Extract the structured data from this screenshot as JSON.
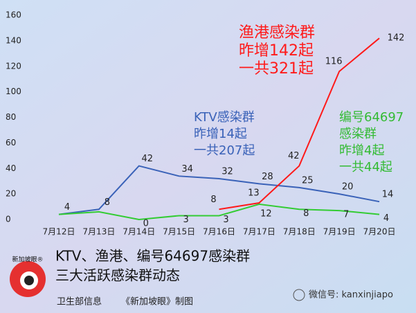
{
  "chart_data": {
    "type": "line",
    "categories": [
      "7月12日",
      "7月13日",
      "7月14日",
      "7月15日",
      "7月16日",
      "7月17日",
      "7月18日",
      "7月19日",
      "7月20日"
    ],
    "series": [
      {
        "color": "#3a62b8",
        "values": [
          4,
          8,
          42,
          34,
          32,
          28,
          25,
          20,
          14
        ],
        "value_labels": [
          "4",
          "8",
          "42",
          "34",
          "32",
          "28",
          "25",
          "20",
          "14"
        ]
      },
      {
        "color": "#33cc33",
        "values": [
          4,
          6,
          0,
          3,
          3,
          12,
          8,
          7,
          4
        ],
        "value_labels": [
          null,
          null,
          "0",
          "3",
          "3",
          "12",
          "8",
          "7",
          "4"
        ]
      },
      {
        "color": "#ff1a1a",
        "values": [
          null,
          null,
          null,
          null,
          8,
          13,
          42,
          116,
          142
        ],
        "value_labels": [
          null,
          null,
          null,
          null,
          "8",
          "13",
          "42",
          "116",
          "142"
        ]
      }
    ],
    "ylim": [
      0,
      160
    ],
    "yticks": [
      0,
      20,
      40,
      60,
      80,
      100,
      120,
      140,
      160
    ],
    "annotations": [
      {
        "color": "#ff1a1a",
        "lines": [
          "渔港感染群",
          "昨增142起",
          "一共321起"
        ]
      },
      {
        "color": "#3a62b8",
        "lines": [
          "KTV感染群",
          "昨增14起",
          "一共207起"
        ]
      },
      {
        "color": "#33bb33",
        "lines": [
          "编号64697",
          "感染群",
          "昨增4起",
          "一共44起"
        ]
      }
    ],
    "title": "KTV、渔港、编号64697感染群",
    "subtitle": "三大活跃感染群动态",
    "source": "卫生部信息",
    "credit": "《新加坡眼》制图",
    "logo": "新加坡眼®",
    "watermark": "微信号: kanxinjiapo"
  }
}
